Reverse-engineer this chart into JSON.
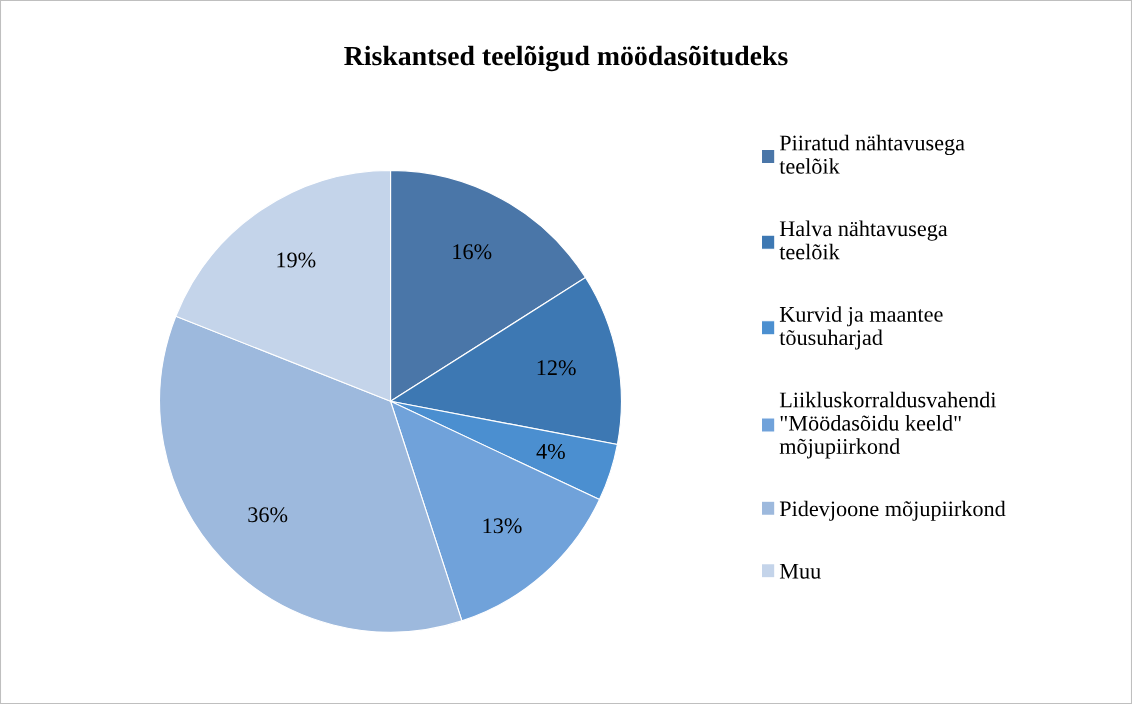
{
  "chart_data": {
    "type": "pie",
    "title": "Riskantsed teelõigud möödasõitudeks",
    "categories": [
      "Piiratud nähtavusega teelõik",
      "Halva nähtavusega teelõik",
      "Kurvid ja maantee tõusuharjad",
      "Liikluskorraldusvahendi \"Möödasõidu keeld\" mõjupiirkond",
      "Pidevjoone mõjupiirkond",
      "Muu"
    ],
    "values": [
      16,
      12,
      4,
      13,
      36,
      19
    ],
    "colors": [
      "#4a76a8",
      "#3d78b3",
      "#4b8fd0",
      "#70a2da",
      "#9db9dd",
      "#c4d4ea"
    ],
    "value_labels": [
      "16%",
      "12%",
      "4%",
      "13%",
      "36%",
      "19%"
    ],
    "legend": "right"
  }
}
